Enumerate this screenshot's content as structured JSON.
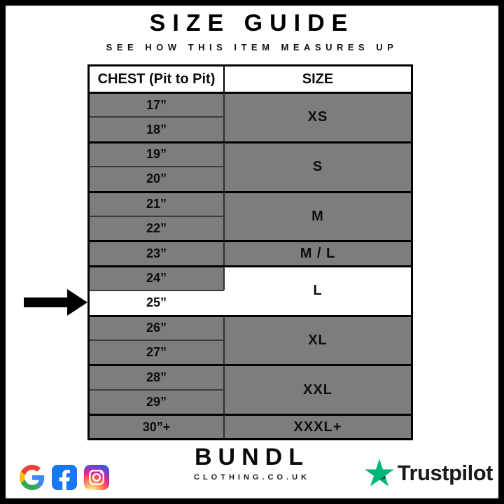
{
  "title": "SIZE GUIDE",
  "subtitle": "SEE HOW THIS ITEM MEASURES UP",
  "table": {
    "columns": [
      "CHEST (Pit to Pit)",
      "SIZE"
    ],
    "groups": [
      {
        "size": "XS",
        "rows": [
          "17”",
          "18”"
        ]
      },
      {
        "size": "S",
        "rows": [
          "19”",
          "20”"
        ]
      },
      {
        "size": "M",
        "rows": [
          "21”",
          "22”"
        ]
      },
      {
        "size": "M / L",
        "rows": [
          "23”"
        ]
      },
      {
        "size": "L",
        "rows": [
          "24”",
          "25”"
        ],
        "highlight_size": true,
        "highlight_rows": [
          "25”"
        ]
      },
      {
        "size": "XL",
        "rows": [
          "26”",
          "27”"
        ]
      },
      {
        "size": "XXL",
        "rows": [
          "28”",
          "29”"
        ]
      },
      {
        "size": "XXXL+",
        "rows": [
          "30”+"
        ]
      }
    ],
    "highlighted_measurement": "25”",
    "highlighted_size": "L"
  },
  "footer": {
    "brand": {
      "name": "BUNDL",
      "domain": "CLOTHING.CO.UK"
    },
    "social_icons": [
      "google-icon",
      "facebook-icon",
      "instagram-icon"
    ],
    "trustpilot_label": "Trustpilot"
  },
  "colors": {
    "row_gray": "#7d7d7d",
    "highlight_white": "#ffffff",
    "border_black": "#000000",
    "facebook_blue": "#1877f2",
    "trustpilot_green": "#00b67a",
    "trustpilot_dark_green": "#005128"
  }
}
